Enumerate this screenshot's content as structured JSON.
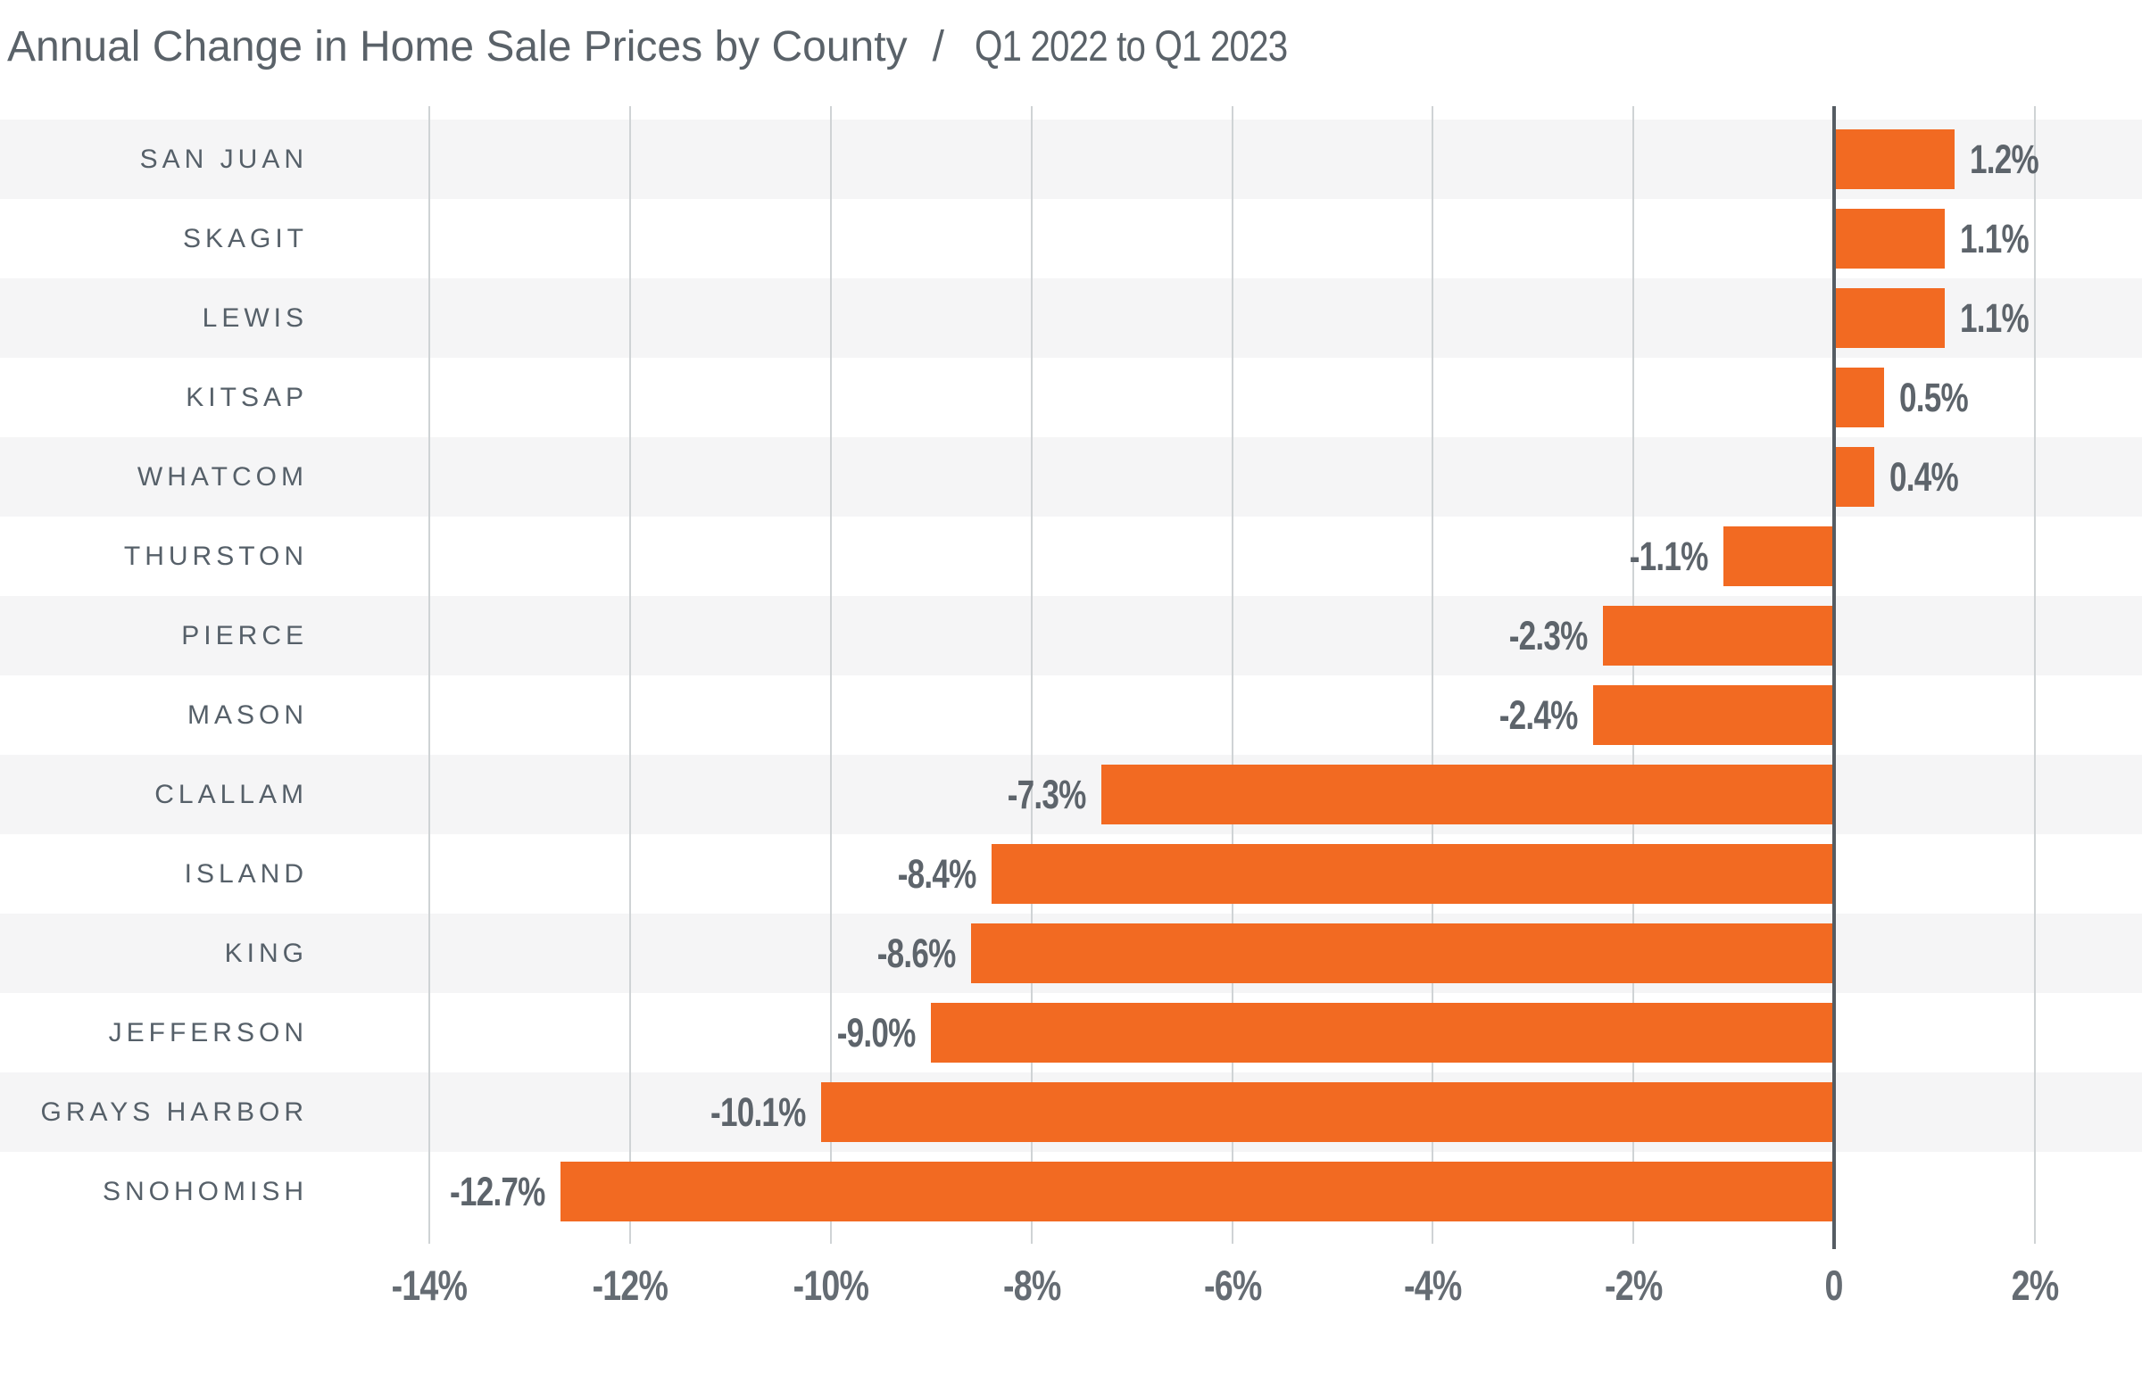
{
  "title": {
    "main": "Annual Change in Home Sale Prices by County",
    "separator": "/",
    "range": "Q1 2022 to Q1 2023"
  },
  "chart_data": {
    "type": "bar",
    "orientation": "horizontal",
    "title": "Annual Change in Home Sale Prices by County / Q1 2022 to Q1 2023",
    "categories": [
      "SAN JUAN",
      "SKAGIT",
      "LEWIS",
      "KITSAP",
      "WHATCOM",
      "THURSTON",
      "PIERCE",
      "MASON",
      "CLALLAM",
      "ISLAND",
      "KING",
      "JEFFERSON",
      "GRAYS HARBOR",
      "SNOHOMISH"
    ],
    "values": [
      1.2,
      1.1,
      1.1,
      0.5,
      0.4,
      -1.1,
      -2.3,
      -2.4,
      -7.3,
      -8.4,
      -8.6,
      -9.0,
      -10.1,
      -12.7
    ],
    "value_labels": [
      "1.2%",
      "1.1%",
      "1.1%",
      "0.5%",
      "0.4%",
      "-1.1%",
      "-2.3%",
      "-2.4%",
      "-7.3%",
      "-8.4%",
      "-8.6%",
      "-9.0%",
      "-10.1%",
      "-12.7%"
    ],
    "xlim": [
      -14,
      2
    ],
    "xticks": [
      {
        "value": -14,
        "label": "-14%"
      },
      {
        "value": -12,
        "label": "-12%"
      },
      {
        "value": -10,
        "label": "-10%"
      },
      {
        "value": -8,
        "label": "-8%"
      },
      {
        "value": -6,
        "label": "-6%"
      },
      {
        "value": -4,
        "label": "-4%"
      },
      {
        "value": -2,
        "label": "-2%"
      },
      {
        "value": 0,
        "label": "0"
      },
      {
        "value": 2,
        "label": "2%"
      }
    ],
    "grid": true,
    "legend": "none",
    "row_striping": true
  },
  "colors": {
    "bar": "#f26a22",
    "band_alt": "#f5f5f6",
    "gridline": "#cfd3d5",
    "zero_axis": "#555c63",
    "title_text": "#5a6269",
    "category_text": "#566069",
    "value_text": "#5d646b",
    "tick_text": "#656c73"
  }
}
